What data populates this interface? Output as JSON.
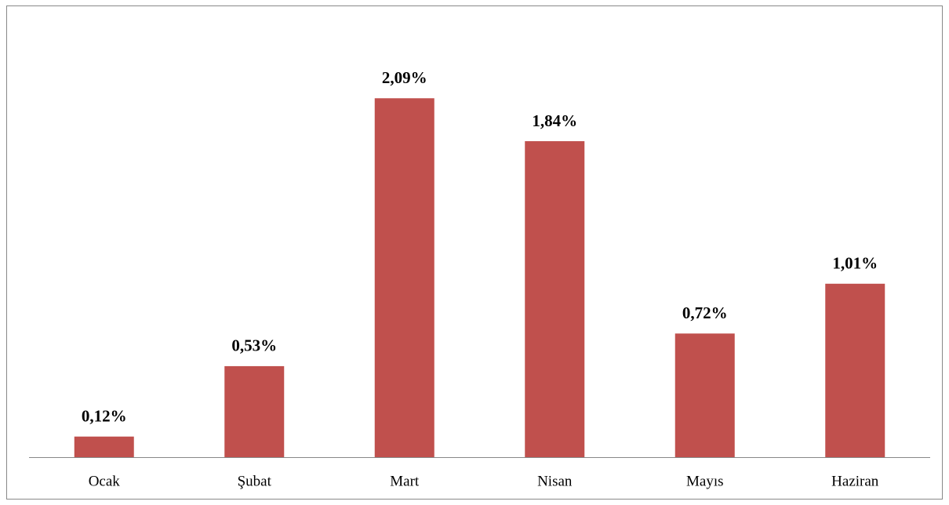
{
  "chart_data": {
    "type": "bar",
    "categories": [
      "Ocak",
      "Şubat",
      "Mart",
      "Nisan",
      "Mayıs",
      "Haziran"
    ],
    "values": [
      0.12,
      0.53,
      2.09,
      1.84,
      0.72,
      1.01
    ],
    "value_labels": [
      "0,12%",
      "0,53%",
      "2,09%",
      "1,84%",
      "0,72%",
      "1,01%"
    ],
    "color": "#c0504d"
  }
}
